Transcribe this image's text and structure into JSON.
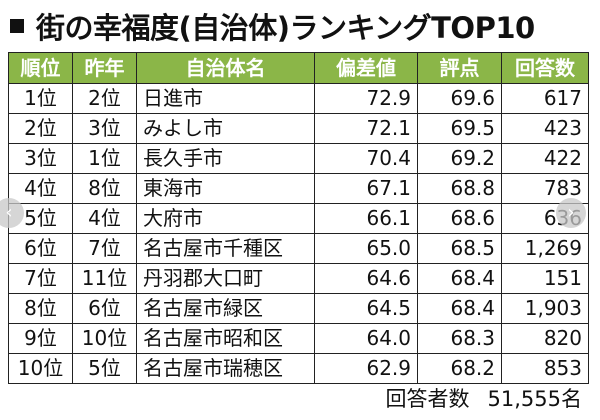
{
  "title": "街の幸福度(自治体)ランキングTOP10",
  "table": {
    "headers": [
      "順位",
      "昨年",
      "自治体名",
      "偏差値",
      "評点",
      "回答数"
    ],
    "rows": [
      [
        "1位",
        "2位",
        "日進市",
        "72.9",
        "69.6",
        "617"
      ],
      [
        "2位",
        "3位",
        "みよし市",
        "72.1",
        "69.5",
        "423"
      ],
      [
        "3位",
        "1位",
        "長久手市",
        "70.4",
        "69.2",
        "422"
      ],
      [
        "4位",
        "8位",
        "東海市",
        "67.1",
        "68.8",
        "783"
      ],
      [
        "5位",
        "4位",
        "大府市",
        "66.1",
        "68.6",
        "636"
      ],
      [
        "6位",
        "7位",
        "名古屋市千種区",
        "65.0",
        "68.5",
        "1,269"
      ],
      [
        "7位",
        "11位",
        "丹羽郡大口町",
        "64.6",
        "68.4",
        "151"
      ],
      [
        "8位",
        "6位",
        "名古屋市緑区",
        "64.5",
        "68.4",
        "1,903"
      ],
      [
        "9位",
        "10位",
        "名古屋市昭和区",
        "64.0",
        "68.3",
        "820"
      ],
      [
        "10位",
        "5位",
        "名古屋市瑞穂区",
        "62.9",
        "68.2",
        "853"
      ]
    ]
  },
  "footer": {
    "label": "回答者数",
    "value": "51,555名"
  },
  "nav": {
    "prev_icon": "chevron-left-icon",
    "next_icon": "chevron-right-icon",
    "prev_glyph": "‹",
    "next_glyph": "›"
  },
  "colors": {
    "header_bg": "#8bb648",
    "header_text": "#ffffff",
    "border": "#222222"
  }
}
